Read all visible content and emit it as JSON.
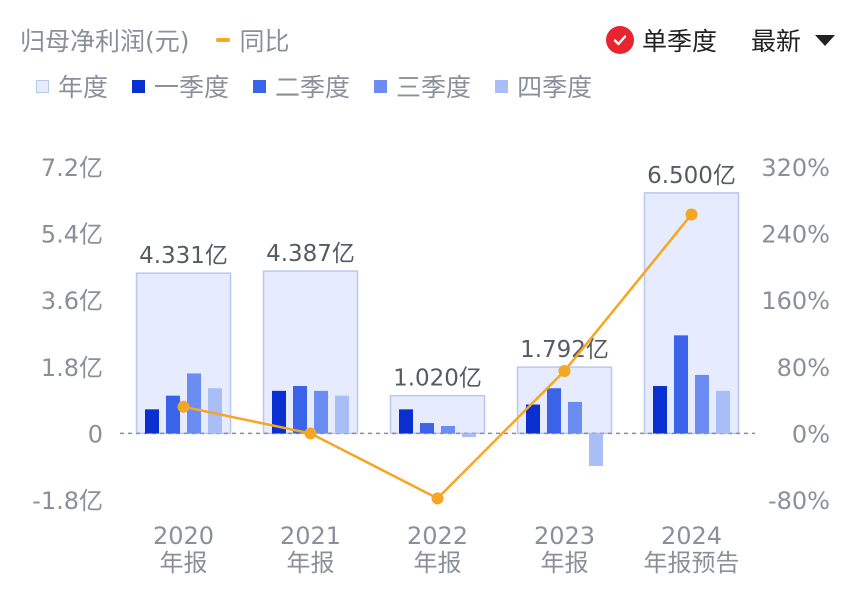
{
  "header": {
    "title": "归母净利润(元)",
    "yoy_label": "同比",
    "single_quarter_label": "单季度",
    "sort_label": "最新"
  },
  "legend": [
    {
      "label": "年度",
      "color": "#e6ecfd",
      "border": "#b9c8ee"
    },
    {
      "label": "一季度",
      "color": "#0a2fd1"
    },
    {
      "label": "二季度",
      "color": "#3a63ea"
    },
    {
      "label": "三季度",
      "color": "#6b8cf0"
    },
    {
      "label": "四季度",
      "color": "#a9bdf7"
    }
  ],
  "chart_data": {
    "type": "bar",
    "categories": [
      "2020\n年报",
      "2021\n年报",
      "2022\n年报",
      "2023\n年报",
      "2024\n年报预告"
    ],
    "annual_labels": [
      "4.331亿",
      "4.387亿",
      "1.020亿",
      "1.792亿",
      "6.500亿"
    ],
    "annual": [
      4.331,
      4.387,
      1.02,
      1.792,
      6.5
    ],
    "series": [
      {
        "name": "一季度",
        "values": [
          0.65,
          1.15,
          0.65,
          0.78,
          1.28
        ]
      },
      {
        "name": "二季度",
        "values": [
          1.02,
          1.28,
          0.28,
          1.22,
          2.65
        ]
      },
      {
        "name": "三季度",
        "values": [
          1.62,
          1.15,
          0.2,
          0.85,
          1.58
        ]
      },
      {
        "name": "四季度",
        "values": [
          1.22,
          1.02,
          -0.1,
          -0.88,
          1.15
        ]
      }
    ],
    "yoy": {
      "name": "同比",
      "values": [
        32,
        0,
        -78,
        75,
        263
      ]
    },
    "yticks": [
      "7.2亿",
      "5.4亿",
      "3.6亿",
      "1.8亿",
      "0",
      "-1.8亿"
    ],
    "yticks_values": [
      7.2,
      5.4,
      3.6,
      1.8,
      0,
      -1.8
    ],
    "y2ticks": [
      "320%",
      "240%",
      "160%",
      "80%",
      "0%",
      "-80%"
    ],
    "y2ticks_values": [
      320,
      240,
      160,
      80,
      0,
      -80
    ],
    "ylim": [
      -1.8,
      7.2
    ],
    "y2lim": [
      -80,
      320
    ]
  }
}
